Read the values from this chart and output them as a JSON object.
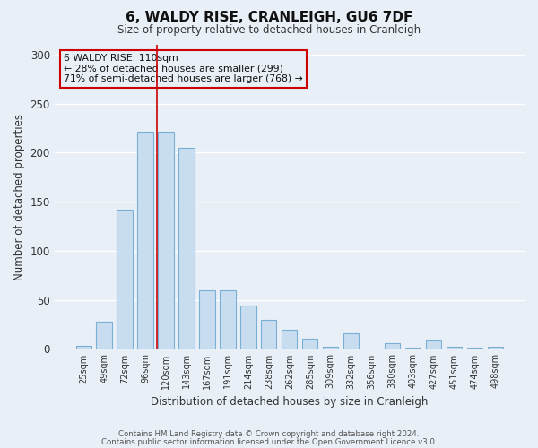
{
  "title": "6, WALDY RISE, CRANLEIGH, GU6 7DF",
  "subtitle": "Size of property relative to detached houses in Cranleigh",
  "xlabel": "Distribution of detached houses by size in Cranleigh",
  "ylabel": "Number of detached properties",
  "categories": [
    "25sqm",
    "49sqm",
    "72sqm",
    "96sqm",
    "120sqm",
    "143sqm",
    "167sqm",
    "191sqm",
    "214sqm",
    "238sqm",
    "262sqm",
    "285sqm",
    "309sqm",
    "332sqm",
    "356sqm",
    "380sqm",
    "403sqm",
    "427sqm",
    "451sqm",
    "474sqm",
    "498sqm"
  ],
  "values": [
    3,
    28,
    142,
    221,
    221,
    205,
    60,
    60,
    44,
    30,
    20,
    10,
    2,
    16,
    0,
    6,
    1,
    9,
    2,
    1,
    2
  ],
  "bar_color": "#c9ddf0",
  "bar_edge_color": "#7aafd4",
  "background_color": "#e8eff7",
  "grid_color": "#ffffff",
  "annotation_box_text": "6 WALDY RISE: 110sqm\n← 28% of detached houses are smaller (299)\n71% of semi-detached houses are larger (768) →",
  "annotation_box_edge_color": "#cc0000",
  "annotation_box_face_color": "#e8eff7",
  "marker_line_color": "#cc0000",
  "ylim": [
    0,
    310
  ],
  "yticks": [
    0,
    50,
    100,
    150,
    200,
    250,
    300
  ],
  "footer_line1": "Contains HM Land Registry data © Crown copyright and database right 2024.",
  "footer_line2": "Contains public sector information licensed under the Open Government Licence v3.0."
}
